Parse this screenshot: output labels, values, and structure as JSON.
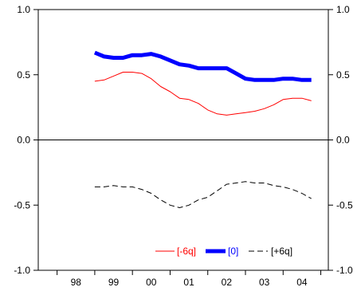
{
  "chart_data": {
    "type": "line",
    "x_categories": [
      "98",
      "99",
      "00",
      "01",
      "02",
      "03",
      "04"
    ],
    "x_range": [
      1997.5,
      2005.2
    ],
    "ylim": [
      -1.0,
      1.0
    ],
    "y_ticks": [
      1.0,
      0.5,
      0.0,
      -0.5,
      -1.0
    ],
    "y_tick_labels": [
      "1.0",
      "0.5",
      "0.0",
      "-0.5",
      "-1.0"
    ],
    "grid": false,
    "legend_position": "bottom-right",
    "series": [
      {
        "name": "[-6q]",
        "color": "#ff0000",
        "style": "thin-solid",
        "x": [
          1999.0,
          1999.25,
          1999.5,
          1999.75,
          2000.0,
          2000.25,
          2000.5,
          2000.75,
          2001.0,
          2001.25,
          2001.5,
          2001.75,
          2002.0,
          2002.25,
          2002.5,
          2002.75,
          2003.0,
          2003.25,
          2003.5,
          2003.75,
          2004.0,
          2004.25,
          2004.5,
          2004.75
        ],
        "y": [
          0.45,
          0.46,
          0.49,
          0.52,
          0.52,
          0.51,
          0.47,
          0.41,
          0.37,
          0.32,
          0.31,
          0.28,
          0.23,
          0.2,
          0.19,
          0.2,
          0.21,
          0.22,
          0.24,
          0.27,
          0.31,
          0.32,
          0.32,
          0.3
        ]
      },
      {
        "name": "[0]",
        "color": "#0000ff",
        "style": "thick-solid",
        "x": [
          1999.0,
          1999.25,
          1999.5,
          1999.75,
          2000.0,
          2000.25,
          2000.5,
          2000.75,
          2001.0,
          2001.25,
          2001.5,
          2001.75,
          2002.0,
          2002.25,
          2002.5,
          2002.75,
          2003.0,
          2003.25,
          2003.5,
          2003.75,
          2004.0,
          2004.25,
          2004.5,
          2004.75
        ],
        "y": [
          0.67,
          0.64,
          0.63,
          0.63,
          0.65,
          0.65,
          0.66,
          0.64,
          0.61,
          0.58,
          0.57,
          0.55,
          0.55,
          0.55,
          0.55,
          0.51,
          0.47,
          0.46,
          0.46,
          0.46,
          0.47,
          0.47,
          0.46,
          0.46
        ]
      },
      {
        "name": "[+6q]",
        "color": "#000000",
        "style": "dashed",
        "x": [
          1999.0,
          1999.25,
          1999.5,
          1999.75,
          2000.0,
          2000.25,
          2000.5,
          2000.75,
          2001.0,
          2001.25,
          2001.5,
          2001.75,
          2002.0,
          2002.25,
          2002.5,
          2002.75,
          2003.0,
          2003.25,
          2003.5,
          2003.75,
          2004.0,
          2004.25,
          2004.5,
          2004.75
        ],
        "y": [
          -0.36,
          -0.36,
          -0.35,
          -0.36,
          -0.36,
          -0.38,
          -0.41,
          -0.46,
          -0.5,
          -0.52,
          -0.5,
          -0.46,
          -0.44,
          -0.39,
          -0.34,
          -0.33,
          -0.32,
          -0.33,
          -0.33,
          -0.35,
          -0.36,
          -0.38,
          -0.41,
          -0.45
        ]
      }
    ]
  }
}
